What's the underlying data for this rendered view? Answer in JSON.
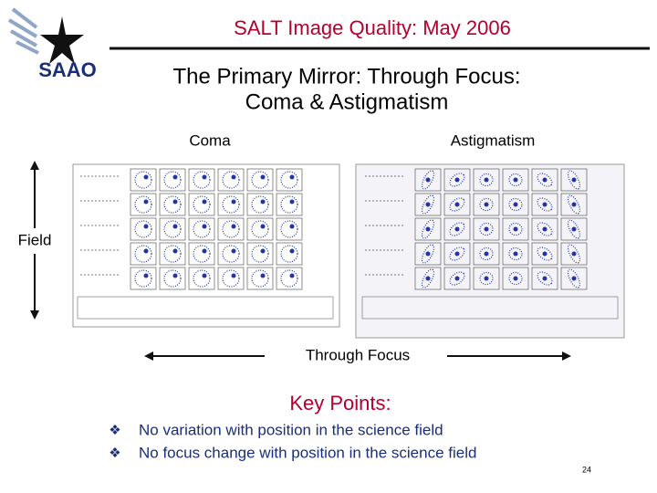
{
  "header": {
    "logo": "SAAO",
    "title": "SALT Image Quality: May 2006"
  },
  "slide": {
    "title_lines": [
      "The Primary Mirror: Through Focus:",
      "Coma & Astigmatism"
    ],
    "panels": [
      "Coma",
      "Astigmatism"
    ],
    "field_label": "Field",
    "focus_label": "Through Focus"
  },
  "key_points": {
    "heading": "Key Points:",
    "items": [
      "No variation with position in the science field",
      "No focus change with position in the science field"
    ]
  },
  "page_number": "24"
}
